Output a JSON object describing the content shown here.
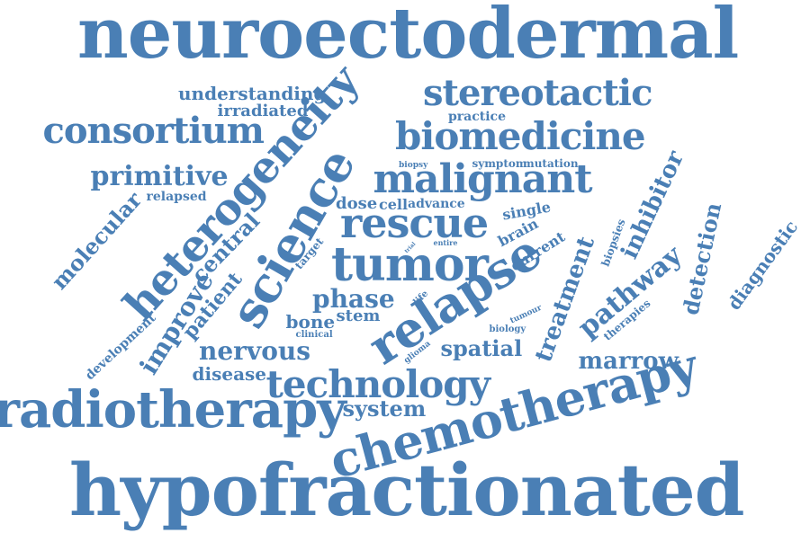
{
  "color": "#4a7fb5",
  "words": [
    "neuroectodermal",
    "hypofractionated",
    "chemotherapy",
    "radiotherapy",
    "technology",
    "relapse",
    "tumor",
    "science",
    "heterogeneity",
    "rescue",
    "malignant",
    "biomedicine",
    "stereotactic",
    "consortium",
    "primitive",
    "molecular",
    "improve",
    "central",
    "patient",
    "nervous",
    "disease",
    "system",
    "spatial",
    "phase",
    "treatment",
    "pathway",
    "inhibitor",
    "detection",
    "diagnostic",
    "marrow",
    "understanding",
    "irradiated",
    "practice",
    "relapsed",
    "dose",
    "cell",
    "advance",
    "single",
    "brain",
    "current",
    "target",
    "bone",
    "stem",
    "clinical",
    "development",
    "biopsies",
    "therapies",
    "biology",
    "tumour",
    "glioma",
    "life",
    "entire",
    "symptom",
    "mutation",
    "biopsy",
    "trial"
  ]
}
